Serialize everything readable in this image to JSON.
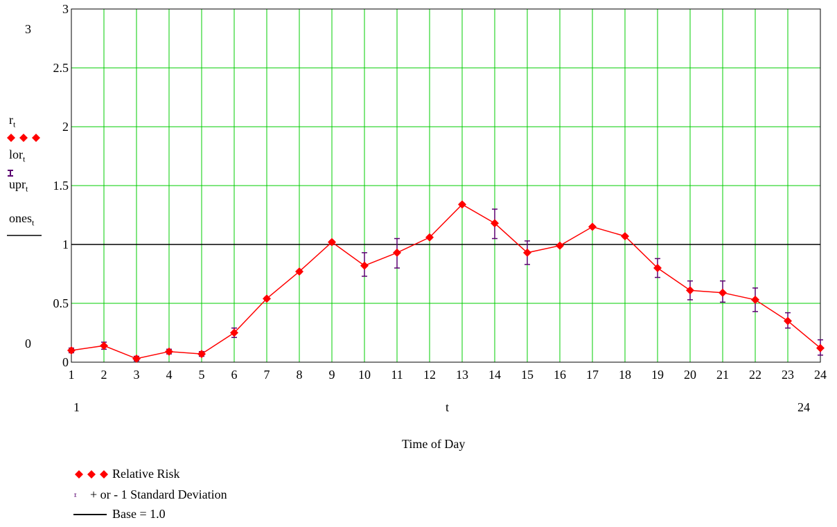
{
  "chart_data": {
    "type": "line",
    "xlabel": "Time of Day",
    "x_var": "t",
    "x_range_labels": {
      "min": "1",
      "max": "24"
    },
    "y_range_labels": {
      "max": "3",
      "min": "0"
    },
    "ylim": [
      0,
      3
    ],
    "xlim": [
      1,
      24
    ],
    "yticks": [
      "0",
      "0.5",
      "1",
      "1.5",
      "2",
      "2.5",
      "3"
    ],
    "xticks": [
      "1",
      "2",
      "3",
      "4",
      "5",
      "6",
      "7",
      "8",
      "9",
      "10",
      "11",
      "12",
      "13",
      "14",
      "15",
      "16",
      "17",
      "18",
      "19",
      "20",
      "21",
      "22",
      "23",
      "24"
    ],
    "grid": true,
    "grid_color": "#00cc00",
    "y_vars": [
      {
        "base": "r",
        "sub": "t"
      },
      {
        "base": "lor",
        "sub": "t"
      },
      {
        "base": "upr",
        "sub": "t"
      },
      {
        "base": "ones",
        "sub": "t"
      }
    ],
    "x": [
      1,
      2,
      3,
      4,
      5,
      6,
      7,
      8,
      9,
      10,
      11,
      12,
      13,
      14,
      15,
      16,
      17,
      18,
      19,
      20,
      21,
      22,
      23,
      24
    ],
    "series": [
      {
        "name": "Relative Risk",
        "color": "#ff0000",
        "marker": "diamond",
        "values": [
          0.1,
          0.14,
          0.03,
          0.09,
          0.07,
          0.25,
          0.54,
          0.77,
          1.02,
          0.82,
          0.93,
          1.06,
          1.34,
          1.18,
          0.93,
          0.99,
          1.15,
          1.07,
          0.8,
          0.61,
          0.59,
          0.53,
          0.35,
          0.12
        ]
      },
      {
        "name": "lor",
        "color": "#5a0070",
        "values": [
          0.08,
          0.11,
          0.01,
          0.07,
          0.05,
          0.21,
          0.53,
          0.76,
          1.01,
          0.73,
          0.8,
          1.05,
          1.33,
          1.05,
          0.83,
          0.98,
          1.14,
          1.06,
          0.72,
          0.53,
          0.51,
          0.43,
          0.29,
          0.06
        ]
      },
      {
        "name": "upr",
        "color": "#5a0070",
        "values": [
          0.12,
          0.17,
          0.05,
          0.11,
          0.09,
          0.29,
          0.55,
          0.78,
          1.03,
          0.93,
          1.05,
          1.07,
          1.35,
          1.3,
          1.03,
          1.0,
          1.16,
          1.08,
          0.88,
          0.69,
          0.69,
          0.63,
          0.42,
          0.19
        ]
      },
      {
        "name": "Base = 1.0",
        "color": "#000000",
        "values_constant": 1.0
      }
    ],
    "legend": {
      "placement": "bottom-left",
      "items": [
        {
          "label": "Relative Risk",
          "symbol": "red-diamonds"
        },
        {
          "label": "+ or - 1 Standard  Deviation",
          "symbol": "error-bar"
        },
        {
          "label": "Base = 1.0",
          "symbol": "black-line"
        }
      ]
    }
  }
}
